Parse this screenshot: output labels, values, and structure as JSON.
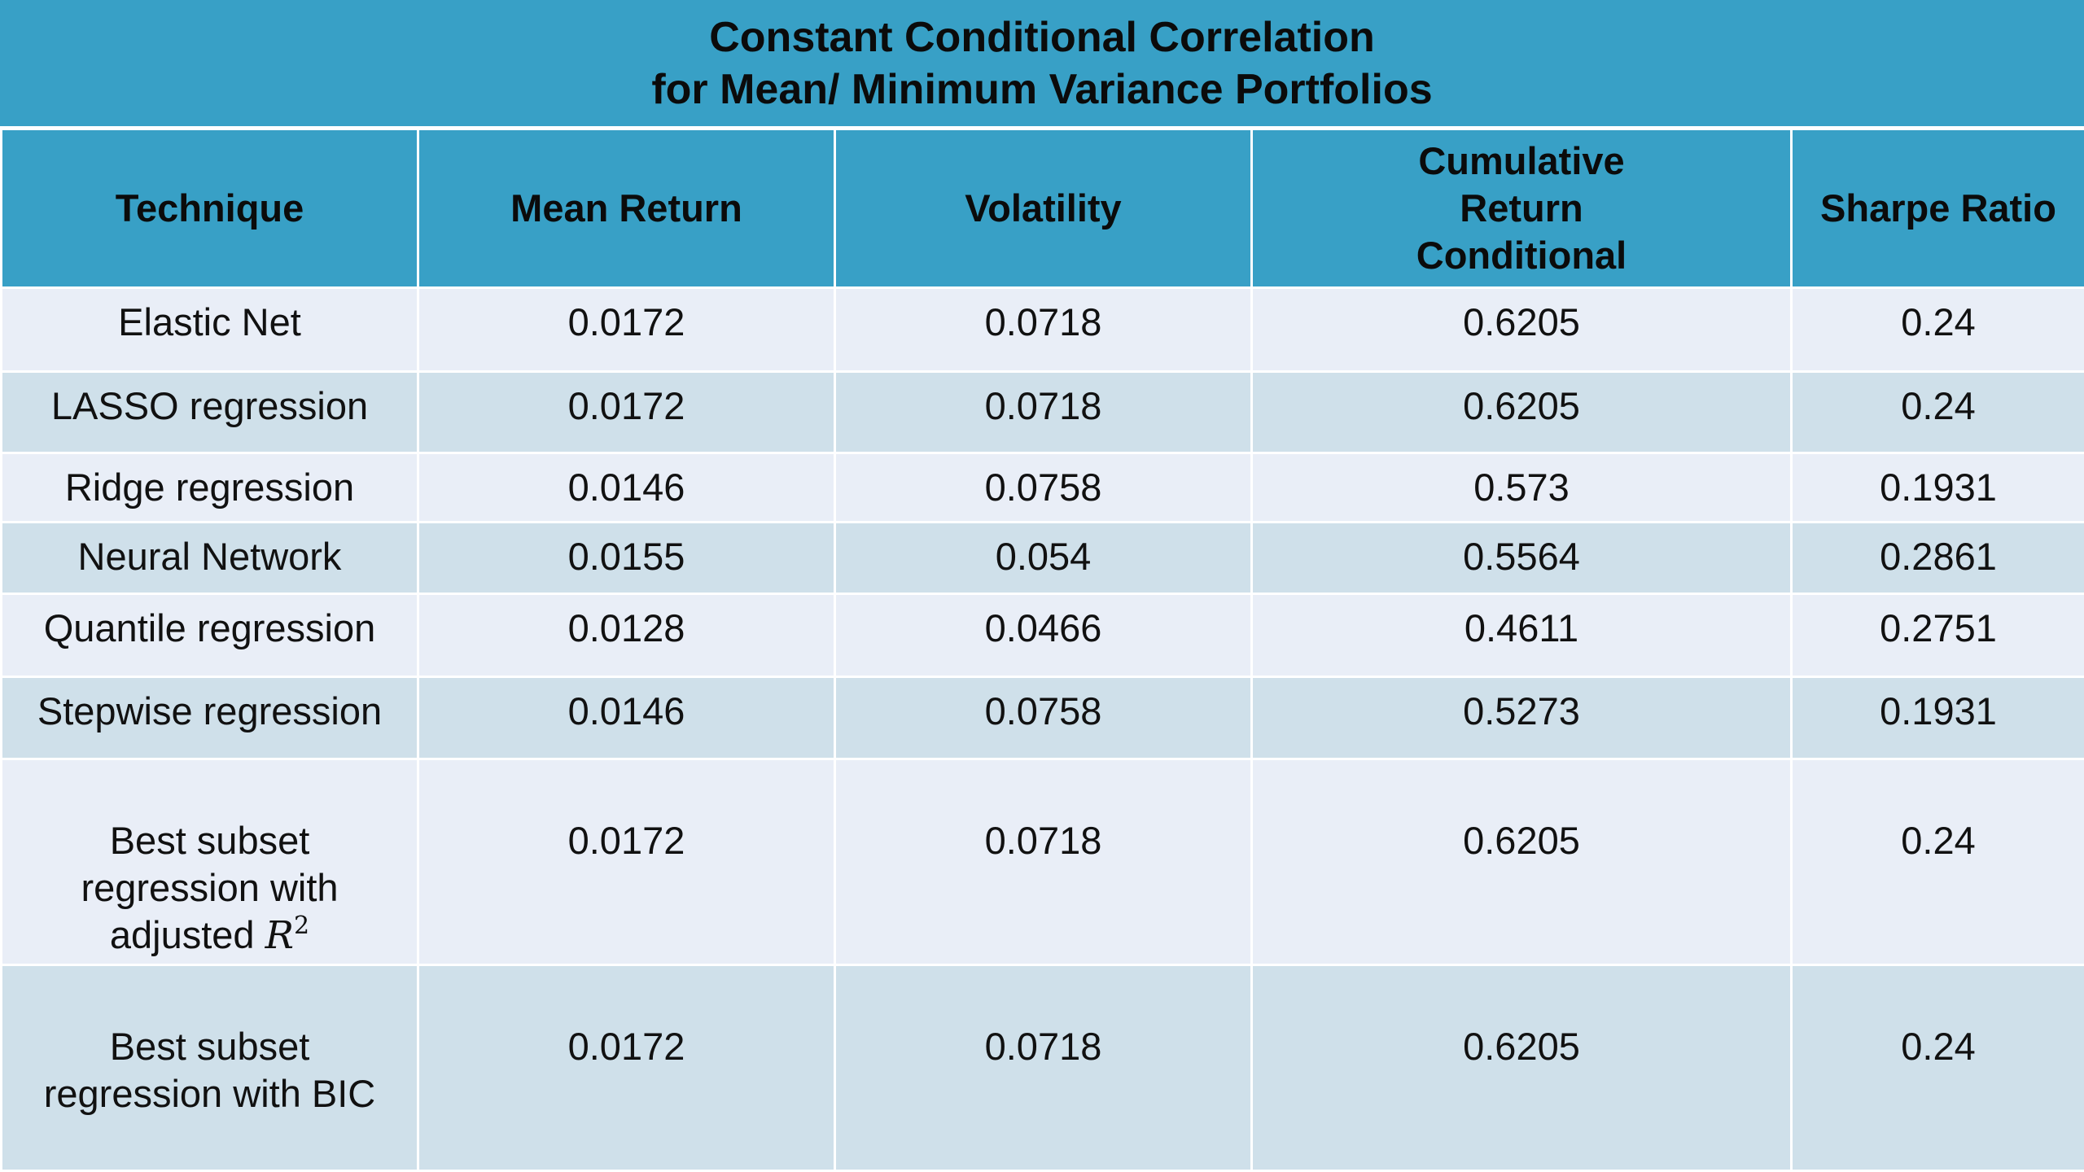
{
  "title": {
    "line1": "Constant Conditional Correlation",
    "line2": "for Mean/ Minimum Variance Portfolios"
  },
  "chart_data": {
    "type": "table",
    "columns": [
      "Technique",
      "Mean Return",
      "Volatility",
      "Cumulative Return Conditional",
      "Sharpe Ratio"
    ],
    "rows": [
      {
        "technique": "Elastic Net",
        "mean_return": "0.0172",
        "volatility": "0.0718",
        "cumulative_return": "0.6205",
        "sharpe": "0.24"
      },
      {
        "technique": "LASSO regression",
        "mean_return": "0.0172",
        "volatility": "0.0718",
        "cumulative_return": "0.6205",
        "sharpe": "0.24"
      },
      {
        "technique": "Ridge regression",
        "mean_return": "0.0146",
        "volatility": "0.0758",
        "cumulative_return": "0.573",
        "sharpe": "0.1931"
      },
      {
        "technique": "Neural Network",
        "mean_return": "0.0155",
        "volatility": "0.054",
        "cumulative_return": "0.5564",
        "sharpe": "0.2861"
      },
      {
        "technique": "Quantile regression",
        "mean_return": "0.0128",
        "volatility": "0.0466",
        "cumulative_return": "0.4611",
        "sharpe": "0.2751"
      },
      {
        "technique": "Stepwise regression",
        "mean_return": "0.0146",
        "volatility": "0.0758",
        "cumulative_return": "0.5273",
        "sharpe": "0.1931"
      },
      {
        "technique": "Best subset regression with adjusted R2",
        "mean_return": "0.0172",
        "volatility": "0.0718",
        "cumulative_return": "0.6205",
        "sharpe": "0.24"
      },
      {
        "technique": "Best subset regression with BIC",
        "mean_return": "0.0172",
        "volatility": "0.0718",
        "cumulative_return": "0.6205",
        "sharpe": "0.24"
      }
    ]
  },
  "header": {
    "technique": "Technique",
    "mean_return": "Mean Return",
    "volatility": "Volatility",
    "cumulative_line1": "Cumulative",
    "cumulative_line2": "Return",
    "cumulative_line3": "Conditional",
    "sharpe": "Sharpe Ratio"
  },
  "multiline": {
    "row7": {
      "line1": "Best subset",
      "line2": "regression with",
      "line3_text": "adjusted",
      "symbol": "R",
      "exponent": "2"
    },
    "row8": {
      "line1": "Best subset",
      "line2": "regression with BIC"
    }
  },
  "colors": {
    "header_bg": "#38a0c6",
    "row_light": "#e9eef7",
    "row_dark": "#cfe0ea"
  }
}
